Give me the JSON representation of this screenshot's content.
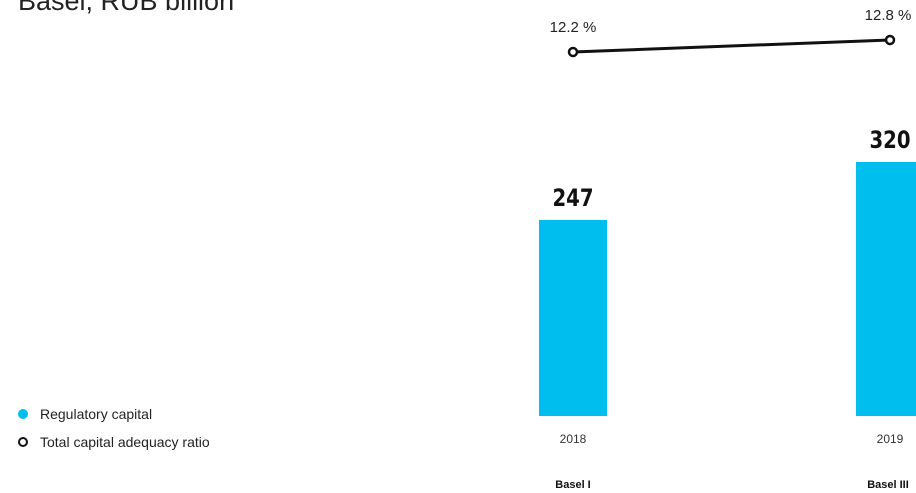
{
  "title": "Basel, RUB billion",
  "colors": {
    "bar": "#00bfef",
    "line": "#111111"
  },
  "legend": {
    "regulatory_capital": "Regulatory capital",
    "total_car": "Total capital adequacy ratio"
  },
  "chart_data": {
    "type": "bar",
    "title": "Basel, RUB billion",
    "categories": [
      "2018",
      "2019"
    ],
    "standards": [
      "Basel I",
      "Basel III"
    ],
    "series": [
      {
        "name": "Regulatory capital",
        "type": "bar",
        "values": [
          247,
          320
        ],
        "labels": [
          "247",
          "320"
        ]
      },
      {
        "name": "Total capital adequacy ratio",
        "type": "line",
        "values": [
          12.2,
          12.8
        ],
        "unit": "%",
        "labels": [
          "12.2 %",
          "12.8 %"
        ]
      }
    ],
    "legend_position": "bottom-left",
    "grid": false
  }
}
